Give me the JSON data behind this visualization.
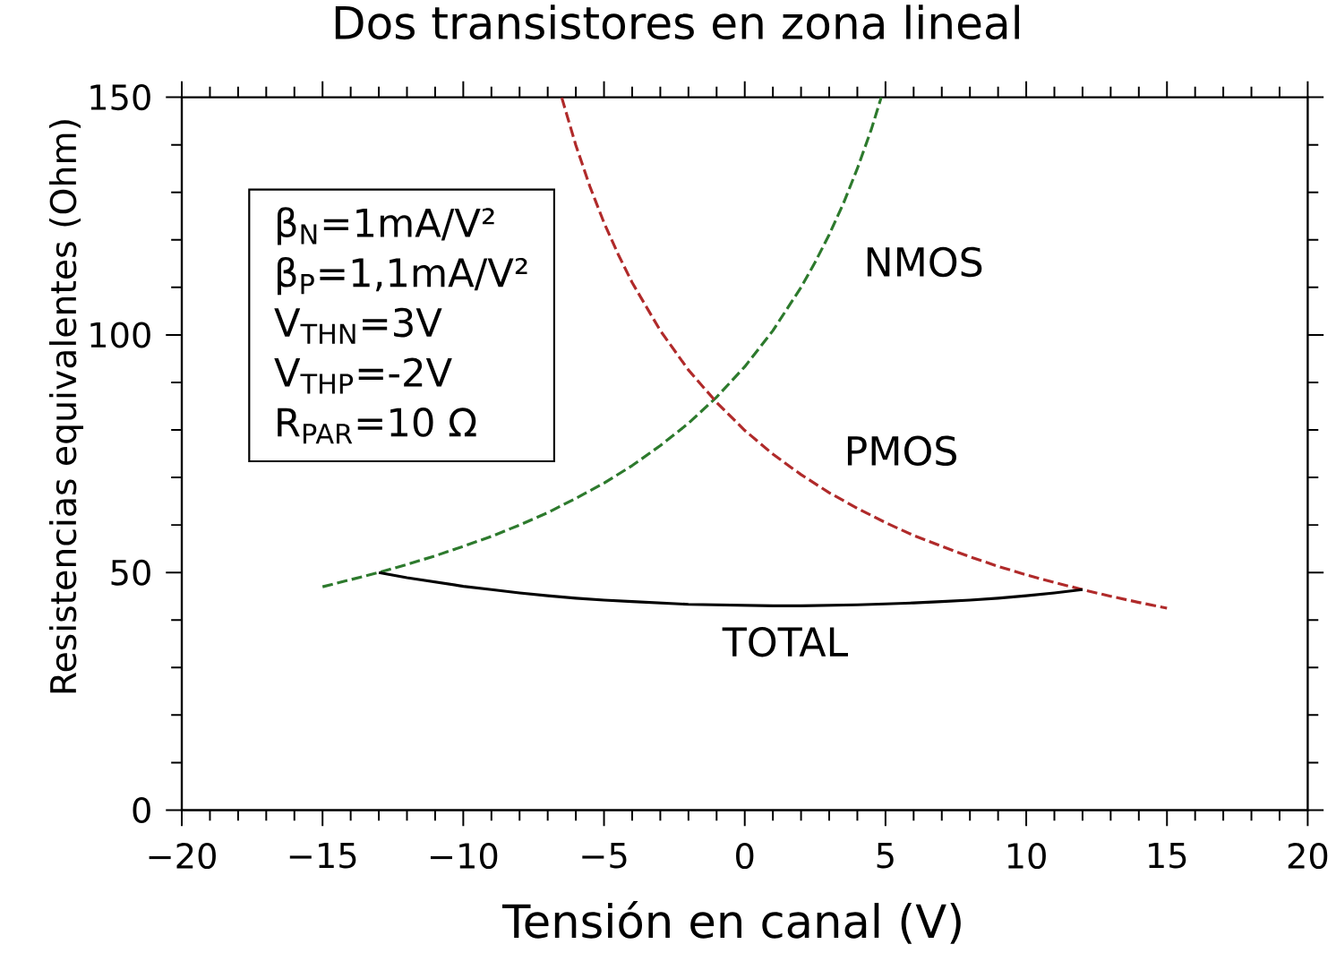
{
  "chart_data": {
    "type": "line",
    "title": "Dos transistores en zona lineal",
    "xlabel": "Tensión en canal (V)",
    "ylabel": "Resistencias equivalentes (Ohm)",
    "xlim": [
      -20,
      20
    ],
    "ylim": [
      0,
      150
    ],
    "xticks": [
      {
        "value": -20,
        "label": "−20"
      },
      {
        "value": -15,
        "label": "−15"
      },
      {
        "value": -10,
        "label": "−10"
      },
      {
        "value": -5,
        "label": "−5"
      },
      0,
      5,
      10,
      15,
      20
    ],
    "yticks": [
      0,
      50,
      100,
      150
    ],
    "series": [
      {
        "name": "NMOS",
        "color": "#2d7a2d",
        "line_style": "dashed",
        "x": [
          -15,
          -14,
          -13,
          -12,
          -11,
          -10,
          -9,
          -8,
          -7,
          -6,
          -5,
          -4,
          -3,
          -2,
          -1,
          0,
          1,
          2,
          2.5,
          3,
          3.5,
          4,
          4.5,
          4.85
        ],
        "values": [
          47.0,
          48.5,
          50.0,
          51.7,
          53.5,
          55.5,
          57.6,
          60.0,
          62.6,
          65.6,
          68.8,
          72.5,
          76.7,
          81.4,
          86.9,
          93.3,
          100.9,
          110.0,
          115.3,
          121.1,
          127.6,
          135.0,
          143.3,
          150.0
        ]
      },
      {
        "name": "PMOS",
        "color": "#b02a2a",
        "line_style": "dashed",
        "x": [
          -6.5,
          -6,
          -5.5,
          -5,
          -4.5,
          -4,
          -3,
          -2,
          -1,
          0,
          1,
          2,
          3,
          4,
          5,
          6,
          7,
          8,
          9,
          10,
          11,
          12,
          13,
          14,
          15
        ],
        "values": [
          149.9,
          139.9,
          131.2,
          123.6,
          117.0,
          111.0,
          100.9,
          92.6,
          85.8,
          79.9,
          74.9,
          70.6,
          66.8,
          63.5,
          60.5,
          57.8,
          55.5,
          53.3,
          51.3,
          49.5,
          47.9,
          46.4,
          45.0,
          43.7,
          42.5
        ]
      },
      {
        "name": "TOTAL",
        "color": "#000000",
        "line_style": "solid",
        "x": [
          -13,
          -12,
          -11,
          -10,
          -9,
          -8,
          -7,
          -6,
          -5,
          -4,
          -3,
          -2,
          -1,
          0,
          1,
          2,
          3,
          4,
          5,
          6,
          7,
          8,
          9,
          10,
          11,
          12
        ],
        "values": [
          50.0,
          48.9,
          48.0,
          47.1,
          46.4,
          45.7,
          45.1,
          44.6,
          44.2,
          43.9,
          43.6,
          43.3,
          43.2,
          43.1,
          43.0,
          43.0,
          43.1,
          43.2,
          43.4,
          43.6,
          43.9,
          44.2,
          44.6,
          45.1,
          45.7,
          46.4
        ]
      }
    ],
    "annotations": [
      "β$_{N}$=1mA/V²",
      "β$_{P}$=1,1mA/V²",
      "V$_{THN}$=3V",
      "V$_{THP}$=-2V",
      "R$_{PAR}$=10 Ω"
    ]
  }
}
